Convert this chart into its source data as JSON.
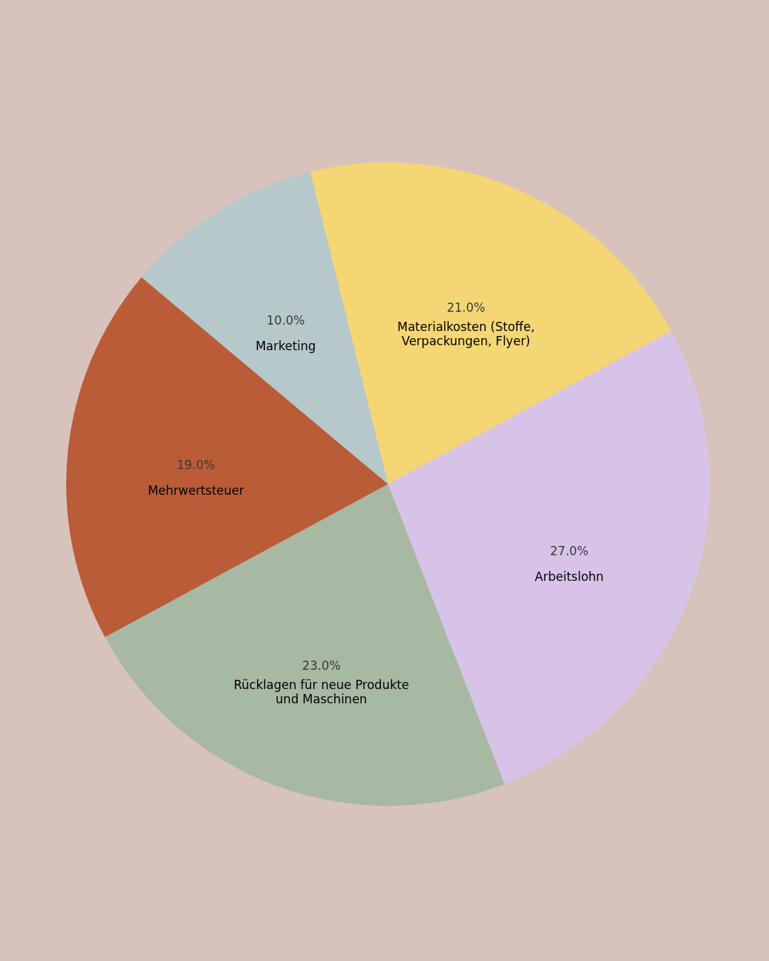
{
  "chart_data": {
    "type": "pie",
    "categories": [
      "Materialkosten (Stoffe,\nVerpackungen, Flyer)",
      "Arbeitslohn",
      "Rücklagen für neue Produkte\nund Maschinen",
      "Mehrwertsteuer",
      "Marketing"
    ],
    "values": [
      21,
      27,
      23,
      19,
      10
    ],
    "colors": [
      "#f4d675",
      "#d8c3e8",
      "#a7b8a3",
      "#b95c37",
      "#b7c8cb"
    ],
    "value_labels": [
      "21.0%",
      "27.0%",
      "23.0%",
      "19.0%",
      "10.0%"
    ]
  }
}
